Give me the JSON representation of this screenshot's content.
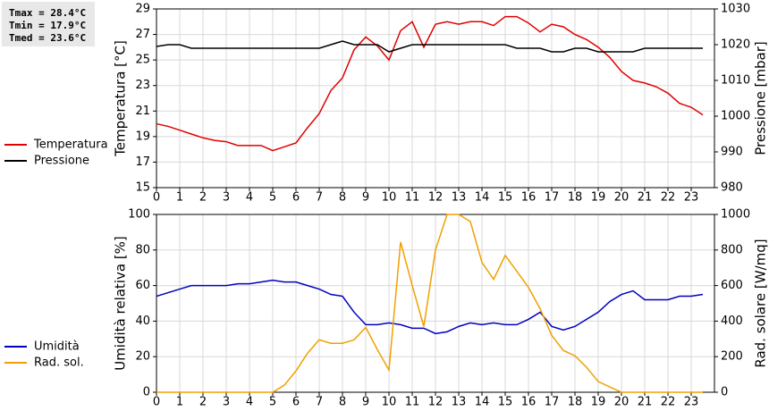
{
  "chart_data": [
    {
      "type": "line",
      "annotations": [
        "Tmax = 28.4°C",
        "Tmin = 17.9°C",
        "Tmed = 23.6°C"
      ],
      "ylabel": "Temperatura [°C]",
      "y2label": "Pressione [mbar]",
      "x": [
        0,
        0.5,
        1,
        1.5,
        2,
        2.5,
        3,
        3.5,
        4,
        4.5,
        5,
        5.5,
        6,
        6.5,
        7,
        7.5,
        8,
        8.5,
        9,
        9.5,
        10,
        10.5,
        11,
        11.5,
        12,
        12.5,
        13,
        13.5,
        14,
        14.5,
        15,
        15.5,
        16,
        16.5,
        17,
        17.5,
        18,
        18.5,
        19,
        19.5,
        20,
        20.5,
        21,
        21.5,
        22,
        22.5,
        23,
        23.5
      ],
      "xlim": [
        0,
        24
      ],
      "xticks": [
        0,
        1,
        2,
        3,
        4,
        5,
        6,
        7,
        8,
        9,
        10,
        11,
        12,
        13,
        14,
        15,
        16,
        17,
        18,
        19,
        20,
        21,
        22,
        23
      ],
      "ylim": [
        15,
        29
      ],
      "yticks": [
        15,
        17,
        19,
        21,
        23,
        25,
        27,
        29
      ],
      "y2lim": [
        980,
        1030
      ],
      "y2ticks": [
        980,
        990,
        1000,
        1010,
        1020,
        1030
      ],
      "grid": true,
      "legend": "left",
      "series": [
        {
          "name": "Temperatura",
          "color": "#e00000",
          "values": [
            20.0,
            19.8,
            19.5,
            19.2,
            18.9,
            18.7,
            18.6,
            18.3,
            18.3,
            18.3,
            17.9,
            18.2,
            18.5,
            19.7,
            20.8,
            22.6,
            23.6,
            25.8,
            26.8,
            26.1,
            25.0,
            27.3,
            28.0,
            26.0,
            27.8,
            28.0,
            27.8,
            28.0,
            28.0,
            27.7,
            28.4,
            28.4,
            27.9,
            27.2,
            27.8,
            27.6,
            27.0,
            26.6,
            26.0,
            25.2,
            24.1,
            23.4,
            23.2,
            22.9,
            22.4,
            21.6,
            21.3,
            20.7
          ]
        },
        {
          "name": "Pressione",
          "color": "#000000",
          "axis": "y2",
          "values": [
            1019.5,
            1020,
            1020,
            1019,
            1019,
            1019,
            1019,
            1019,
            1019,
            1019,
            1019,
            1019,
            1019,
            1019,
            1019,
            1020,
            1021,
            1020,
            1020,
            1020,
            1018,
            1019,
            1020,
            1020,
            1020,
            1020,
            1020,
            1020,
            1020,
            1020,
            1020,
            1019,
            1019,
            1019,
            1018,
            1018,
            1019,
            1019,
            1018,
            1018,
            1018,
            1018,
            1019,
            1019,
            1019,
            1019,
            1019,
            1019
          ]
        }
      ]
    },
    {
      "type": "line",
      "ylabel": "Umidità relativa [%]",
      "y2label": "Rad. solare [W/mq]",
      "x": [
        0,
        0.5,
        1,
        1.5,
        2,
        2.5,
        3,
        3.5,
        4,
        4.5,
        5,
        5.5,
        6,
        6.5,
        7,
        7.5,
        8,
        8.5,
        9,
        9.5,
        10,
        10.5,
        11,
        11.5,
        12,
        12.5,
        13,
        13.5,
        14,
        14.5,
        15,
        15.5,
        16,
        16.5,
        17,
        17.5,
        18,
        18.5,
        19,
        19.5,
        20,
        20.5,
        21,
        21.5,
        22,
        22.5,
        23,
        23.5
      ],
      "xlim": [
        0,
        24
      ],
      "xticks": [
        0,
        1,
        2,
        3,
        4,
        5,
        6,
        7,
        8,
        9,
        10,
        11,
        12,
        13,
        14,
        15,
        16,
        17,
        18,
        19,
        20,
        21,
        22,
        23
      ],
      "ylim": [
        0,
        100
      ],
      "yticks": [
        0,
        20,
        40,
        60,
        80,
        100
      ],
      "y2lim": [
        0,
        1000
      ],
      "y2ticks": [
        0,
        200,
        400,
        600,
        800,
        1000
      ],
      "grid": true,
      "legend": "left",
      "series": [
        {
          "name": "Umidità",
          "color": "#0000c0",
          "values": [
            54,
            56,
            58,
            60,
            60,
            60,
            60,
            61,
            61,
            62,
            63,
            62,
            62,
            60,
            58,
            55,
            54,
            45,
            38,
            38,
            39,
            38,
            36,
            36,
            33,
            34,
            37,
            39,
            38,
            39,
            38,
            38,
            41,
            45,
            37,
            35,
            37,
            41,
            45,
            51,
            55,
            57,
            52,
            52,
            52,
            54,
            54,
            55
          ]
        },
        {
          "name": "Rad. sol.",
          "color": "#f0a000",
          "axis": "y2",
          "values": [
            0,
            0,
            0,
            0,
            0,
            0,
            0,
            0,
            0,
            0,
            0,
            40,
            120,
            220,
            295,
            275,
            275,
            295,
            365,
            240,
            125,
            845,
            600,
            370,
            800,
            1000,
            1000,
            960,
            730,
            635,
            770,
            680,
            590,
            470,
            320,
            235,
            205,
            140,
            60,
            30,
            0,
            0,
            0,
            0,
            0,
            0,
            0,
            0
          ]
        }
      ]
    }
  ]
}
